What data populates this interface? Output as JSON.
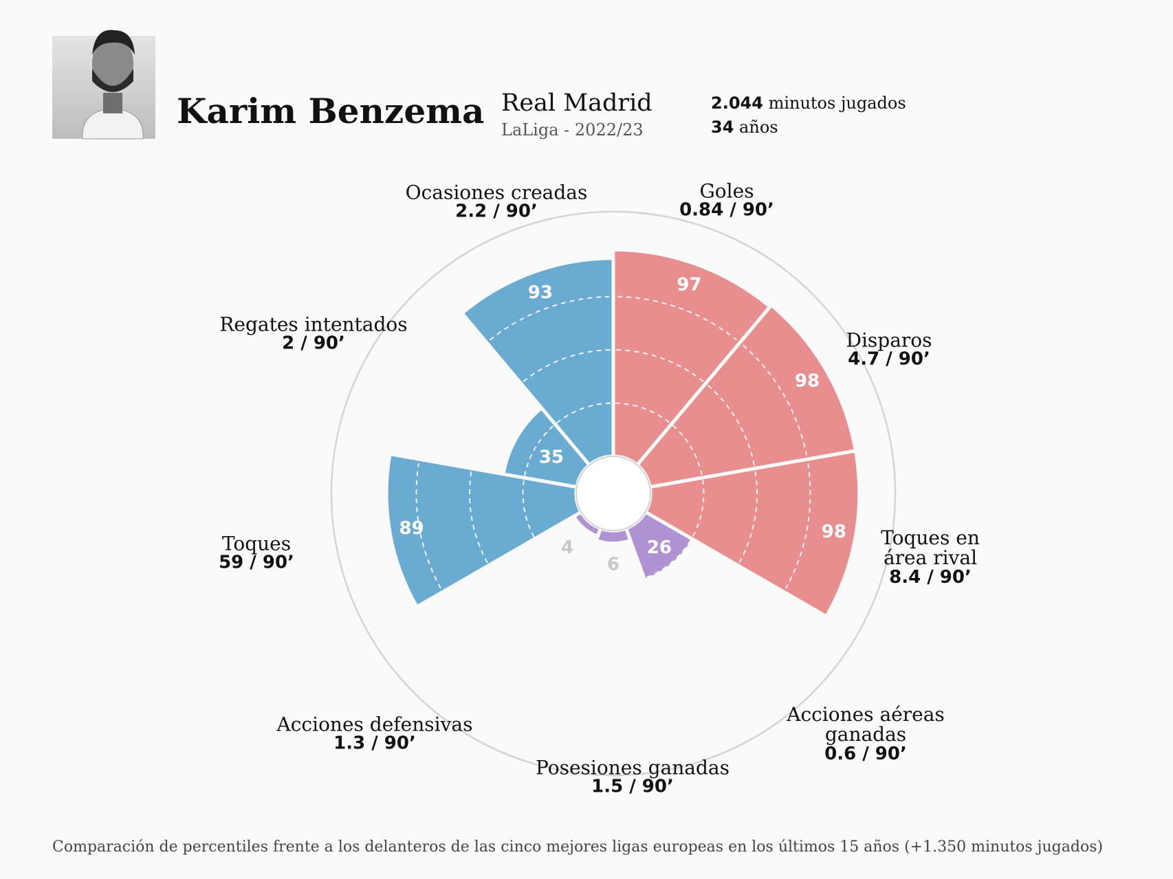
{
  "header": {
    "name": "Karim Benzema",
    "team": "Real Madrid",
    "league": "LaLiga - 2022/23",
    "minutes": "2.044",
    "minutes_label": "minutos jugados",
    "age": "34",
    "age_label": "años"
  },
  "chart_data": {
    "type": "pizza",
    "categories": [
      "Goles",
      "Disparos",
      "Toques en área rival",
      "Acciones aéreas ganadas",
      "Posesiones ganadas",
      "Acciones defensivas",
      "Toques",
      "Regates intentados",
      "Ocasiones creadas"
    ],
    "per90_labels": [
      "0.84 / 90’",
      "4.7 / 90’",
      "8.4 / 90’",
      "0.6 / 90’",
      "1.5 / 90’",
      "1.3 / 90’",
      "59 / 90’",
      "2 / 90’",
      "2.2 / 90’"
    ],
    "values": [
      97,
      98,
      98,
      26,
      6,
      4,
      89,
      35,
      93
    ],
    "colors": [
      "#e88e8e",
      "#e88e8e",
      "#e88e8e",
      "#b093d3",
      "#b093d3",
      "#b093d3",
      "#6aabd2",
      "#6aabd2",
      "#6aabd2"
    ],
    "ylim": [
      0,
      100
    ],
    "yticks": [
      25,
      50,
      75
    ]
  },
  "footnote": "Comparación de percentiles frente a los delanteros de las cinco mejores ligas europeas en los últimos 15 años (+1.350 minutos jugados)"
}
